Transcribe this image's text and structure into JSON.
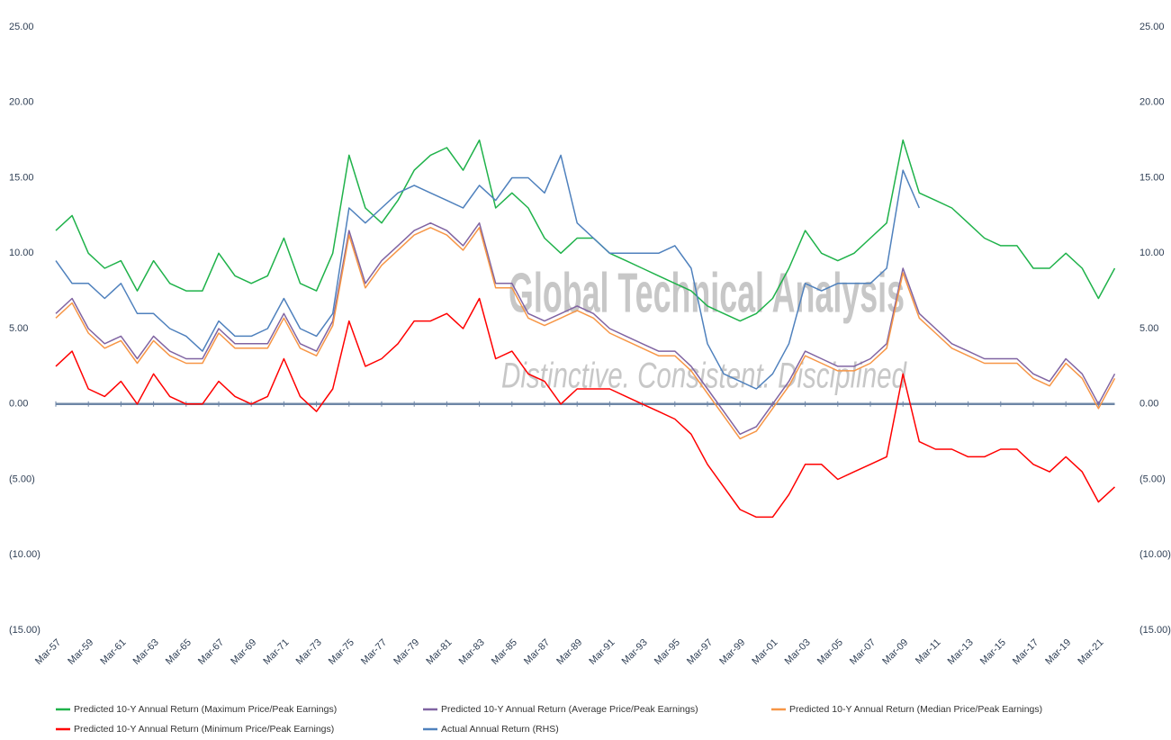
{
  "chart_data": {
    "type": "line",
    "watermark": "Global Technical Analysis",
    "watermark_subtitle": "Distinctive. Consistent. Disciplined",
    "categories": [
      "Mar-57",
      null,
      "Mar-59",
      null,
      "Mar-61",
      null,
      "Mar-63",
      null,
      "Mar-65",
      null,
      "Mar-67",
      null,
      "Mar-69",
      null,
      "Mar-71",
      null,
      "Mar-73",
      null,
      "Mar-75",
      null,
      "Mar-77",
      null,
      "Mar-79",
      null,
      "Mar-81",
      null,
      "Mar-83",
      null,
      "Mar-85",
      null,
      "Mar-87",
      null,
      "Mar-89",
      null,
      "Mar-91",
      null,
      "Mar-93",
      null,
      "Mar-95",
      null,
      "Mar-97",
      null,
      "Mar-99",
      null,
      "Mar-01",
      null,
      "Mar-03",
      null,
      "Mar-05",
      null,
      "Mar-07",
      null,
      "Mar-09",
      null,
      "Mar-11",
      null,
      "Mar-13",
      null,
      "Mar-15",
      null,
      "Mar-17",
      null,
      "Mar-19",
      null,
      "Mar-21",
      null
    ],
    "series": [
      {
        "name": "Predicted 10-Y Annual Return (Maximum Price/Peak Earnings)",
        "color": "#1fb24a",
        "values": [
          11.5,
          12.5,
          10,
          9,
          9.5,
          7.5,
          9.5,
          8,
          7.5,
          7.5,
          10,
          8.5,
          8,
          8.5,
          11,
          8,
          7.5,
          10,
          16.5,
          13,
          12,
          13.5,
          15.5,
          16.5,
          17,
          15.5,
          17.5,
          13,
          14,
          13,
          11,
          10,
          11,
          11,
          10,
          9.5,
          9,
          8.5,
          8,
          7.5,
          6.5,
          6,
          5.5,
          6,
          7,
          9,
          11.5,
          10,
          9.5,
          10,
          11,
          12,
          17.5,
          14,
          13.5,
          13,
          12,
          11,
          10.5,
          10.5,
          9,
          9,
          10,
          9,
          7,
          9
        ]
      },
      {
        "name": "Predicted 10-Y Annual Return (Average Price/Peak Earnings)",
        "color": "#8064a2",
        "values": [
          6,
          7,
          5,
          4,
          4.5,
          3,
          4.5,
          3.5,
          3,
          3,
          5,
          4,
          4,
          4,
          6,
          4,
          3.5,
          5.5,
          11.5,
          8,
          9.5,
          10.5,
          11.5,
          12,
          11.5,
          10.5,
          12,
          8,
          8,
          6,
          5.5,
          6,
          6.5,
          6,
          5,
          4.5,
          4,
          3.5,
          3.5,
          2.5,
          1,
          -0.5,
          -2,
          -1.5,
          0,
          1.5,
          3.5,
          3,
          2.5,
          2.5,
          3,
          4,
          9,
          6,
          5,
          4,
          3.5,
          3,
          3,
          3,
          2,
          1.5,
          3,
          2,
          0,
          2
        ]
      },
      {
        "name": "Predicted 10-Y Annual Return (Median Price/Peak Earnings)",
        "color": "#f79646",
        "values": [
          5.7,
          6.7,
          4.7,
          3.7,
          4.2,
          2.7,
          4.2,
          3.2,
          2.7,
          2.7,
          4.7,
          3.7,
          3.7,
          3.7,
          5.7,
          3.7,
          3.2,
          5.2,
          11.2,
          7.7,
          9.2,
          10.2,
          11.2,
          11.7,
          11.2,
          10.2,
          11.7,
          7.7,
          7.7,
          5.7,
          5.2,
          5.7,
          6.2,
          5.7,
          4.7,
          4.2,
          3.7,
          3.2,
          3.2,
          2.2,
          0.7,
          -0.8,
          -2.3,
          -1.8,
          -0.3,
          1.2,
          3.2,
          2.7,
          2.2,
          2.2,
          2.7,
          3.7,
          8.7,
          5.7,
          4.7,
          3.7,
          3.2,
          2.7,
          2.7,
          2.7,
          1.7,
          1.2,
          2.7,
          1.7,
          -0.3,
          1.7
        ]
      },
      {
        "name": "Predicted 10-Y Annual Return (Minimum Price/Peak Earnings)",
        "color": "#ff0000",
        "values": [
          2.5,
          3.5,
          1,
          0.5,
          1.5,
          0,
          2,
          0.5,
          0,
          0,
          1.5,
          0.5,
          0,
          0.5,
          3,
          0.5,
          -0.5,
          1,
          5.5,
          2.5,
          3,
          4,
          5.5,
          5.5,
          6,
          5,
          7,
          3,
          3.5,
          2,
          1.5,
          0,
          1,
          1,
          1,
          0.5,
          0,
          -0.5,
          -1,
          -2,
          -4,
          -5.5,
          -7,
          -7.5,
          -7.5,
          -6,
          -4,
          -4,
          -5,
          -4.5,
          -4,
          -3.5,
          2,
          -2.5,
          -3,
          -3,
          -3.5,
          -3.5,
          -3,
          -3,
          -4,
          -4.5,
          -3.5,
          -4.5,
          -6.5,
          -5.5
        ]
      },
      {
        "name": "Actual Annual Return (RHS)",
        "color": "#4f81bd",
        "axis": "y2",
        "values": [
          9.5,
          8,
          8,
          7,
          8,
          6,
          6,
          5,
          4.5,
          3.5,
          5.5,
          4.5,
          4.5,
          5,
          7,
          5,
          4.5,
          6,
          13,
          12,
          13,
          14,
          14.5,
          14,
          13.5,
          13,
          14.5,
          13.5,
          15,
          15,
          14,
          16.5,
          12,
          11,
          10,
          10,
          10,
          10,
          10.5,
          9,
          4,
          2,
          1.5,
          1,
          2,
          4,
          8,
          7.5,
          8,
          8,
          8,
          9,
          15.5,
          13,
          null,
          null,
          null,
          null,
          null,
          null,
          null,
          null,
          null,
          null,
          null,
          null
        ]
      }
    ],
    "ylim": [
      -15,
      25
    ],
    "yticks": [
      {
        "value": -15,
        "label": "(15.00)"
      },
      {
        "value": -10,
        "label": "(10.00)"
      },
      {
        "value": -5,
        "label": "(5.00)"
      },
      {
        "value": 0,
        "label": "0.00"
      },
      {
        "value": 5,
        "label": "5.00"
      },
      {
        "value": 10,
        "label": "10.00"
      },
      {
        "value": 15,
        "label": "15.00"
      },
      {
        "value": 20,
        "label": "20.00"
      },
      {
        "value": 25,
        "label": "25.00"
      }
    ],
    "y2lim": [
      -15,
      25
    ],
    "y2ticks": [
      {
        "value": -15,
        "label": "(15.00)"
      },
      {
        "value": -10,
        "label": "(10.00)"
      },
      {
        "value": -5,
        "label": "(5.00)"
      },
      {
        "value": 0,
        "label": "0.00"
      },
      {
        "value": 5,
        "label": "5.00"
      },
      {
        "value": 10,
        "label": "10.00"
      },
      {
        "value": 15,
        "label": "15.00"
      },
      {
        "value": 20,
        "label": "20.00"
      },
      {
        "value": 25,
        "label": "25.00"
      }
    ],
    "grid": false,
    "legend": "bottom"
  }
}
